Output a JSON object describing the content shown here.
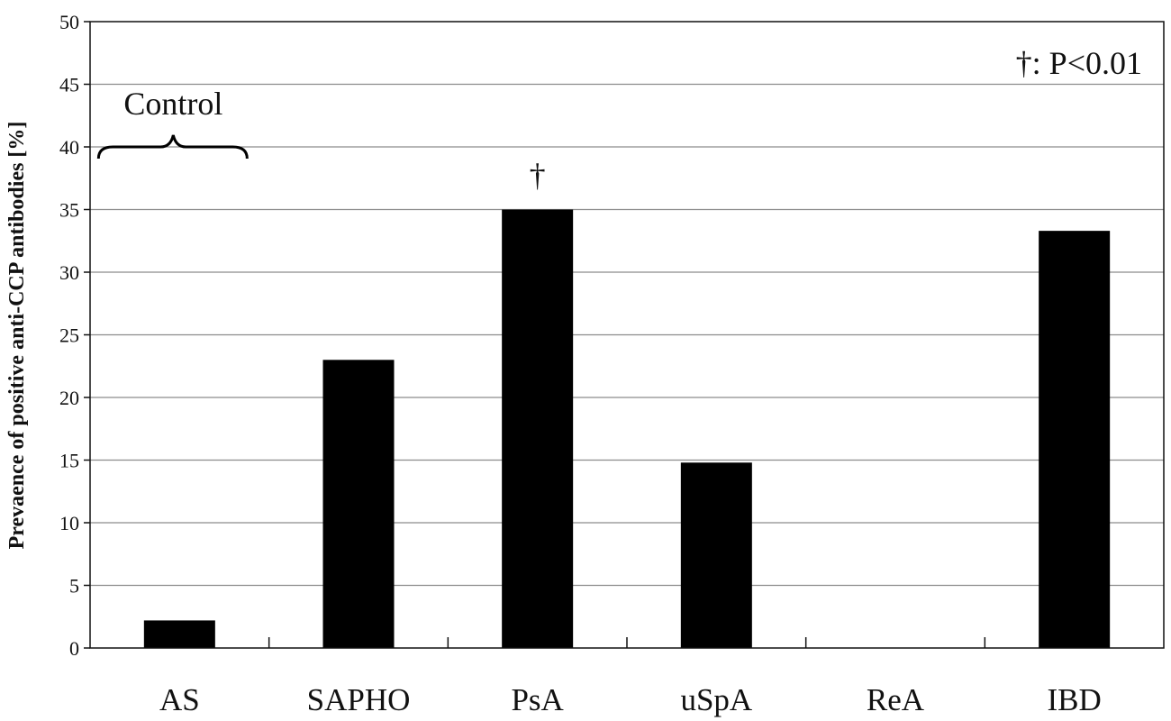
{
  "chart_data": {
    "type": "bar",
    "title": "",
    "xlabel": "",
    "ylabel": "Prevaence of positive anti-CCP antibodies [%]",
    "categories": [
      "AS",
      "SAPHO",
      "PsA",
      "uSpA",
      "ReA",
      "IBD"
    ],
    "values": [
      2.2,
      23.0,
      35.0,
      14.8,
      0,
      33.3
    ],
    "ylim": [
      0,
      50
    ],
    "yticks": [
      0,
      5,
      10,
      15,
      20,
      25,
      30,
      35,
      40,
      45,
      50
    ],
    "grid": true,
    "bar_color": "#000000",
    "significance_marker": {
      "category": "PsA",
      "symbol": "†"
    },
    "legend_note": "†: P<0.01",
    "control_bracket": {
      "category": "AS",
      "label": "Control"
    }
  }
}
